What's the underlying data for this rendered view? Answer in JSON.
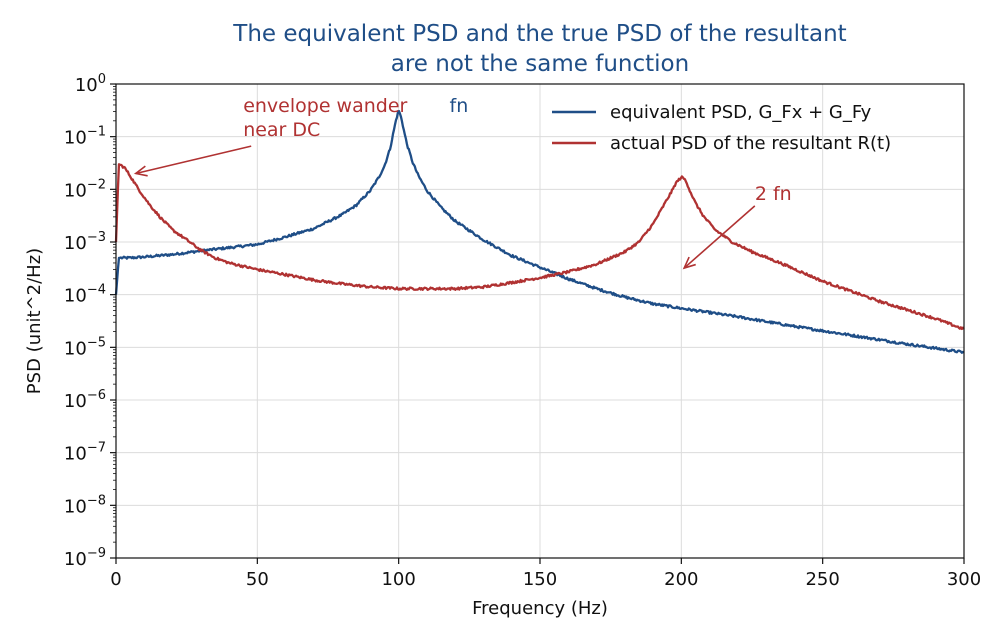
{
  "chart_data": {
    "type": "line",
    "title": [
      "The equivalent PSD and the true PSD of the resultant",
      "are not the same function"
    ],
    "xlabel": "Frequency (Hz)",
    "ylabel": "PSD  (unit^2/Hz)",
    "xlim": [
      0,
      300
    ],
    "ylim": [
      1e-09,
      1
    ],
    "yscale": "log",
    "grid": true,
    "legend_position": "top-right",
    "x_ticks": [
      0,
      50,
      100,
      150,
      200,
      250,
      300
    ],
    "y_tick_exponents": [
      0,
      -1,
      -2,
      -3,
      -4,
      -5,
      -6,
      -7,
      -8,
      -9
    ],
    "y_tick_base": "10",
    "series": [
      {
        "name": "equivalent PSD,  G_Fx + G_Fy",
        "color": "#1f4e87",
        "x": [
          0,
          1,
          5,
          10,
          20,
          30,
          40,
          50,
          60,
          70,
          80,
          85,
          90,
          93,
          95,
          97,
          98,
          99,
          100,
          101,
          102,
          103,
          105,
          107,
          110,
          115,
          120,
          130,
          140,
          150,
          160,
          170,
          180,
          190,
          200,
          220,
          240,
          260,
          280,
          300
        ],
        "y": [
          0.0001,
          0.0005,
          0.0005,
          0.00052,
          0.00058,
          0.00068,
          0.00078,
          0.0009,
          0.00125,
          0.0018,
          0.0033,
          0.005,
          0.0095,
          0.017,
          0.028,
          0.06,
          0.11,
          0.2,
          0.32,
          0.22,
          0.12,
          0.07,
          0.032,
          0.018,
          0.0095,
          0.0045,
          0.0025,
          0.0011,
          0.00055,
          0.00033,
          0.0002,
          0.00013,
          9e-05,
          6.7e-05,
          5.5e-05,
          3.8e-05,
          2.5e-05,
          1.7e-05,
          1.15e-05,
          8e-06
        ]
      },
      {
        "name": "actual PSD of the resultant R(t)",
        "color": "#b03232",
        "x": [
          0,
          1,
          3,
          5,
          8,
          12,
          16,
          20,
          25,
          30,
          35,
          40,
          50,
          60,
          70,
          80,
          90,
          100,
          110,
          120,
          130,
          140,
          150,
          160,
          170,
          180,
          185,
          190,
          193,
          195,
          197,
          198,
          199,
          200,
          201,
          202,
          203,
          205,
          208,
          212,
          218,
          225,
          235,
          250,
          270,
          290,
          300
        ],
        "y": [
          0.001,
          0.03,
          0.026,
          0.018,
          0.01,
          0.005,
          0.0028,
          0.0017,
          0.0011,
          0.0007,
          0.0005,
          0.0004,
          0.0003,
          0.00024,
          0.00019,
          0.00016,
          0.00014,
          0.00013,
          0.00013,
          0.00013,
          0.00014,
          0.00017,
          0.00021,
          0.00027,
          0.00038,
          0.00065,
          0.001,
          0.0022,
          0.0042,
          0.0065,
          0.01,
          0.013,
          0.015,
          0.017,
          0.016,
          0.013,
          0.0095,
          0.0055,
          0.003,
          0.0017,
          0.001,
          0.00065,
          0.0004,
          0.00018,
          7.5e-05,
          3.5e-05,
          2.2e-05
        ]
      }
    ],
    "annotations": [
      {
        "lines": [
          "envelope wander",
          "near DC"
        ],
        "color": "#b03232",
        "text_x": 45,
        "text_y": 0.38,
        "arrow_to": [
          7,
          0.02
        ]
      },
      {
        "lines": [
          "fn"
        ],
        "color": "#1f4e87",
        "text_x": 118,
        "text_y": 0.38,
        "arrow_to": null
      },
      {
        "lines": [
          "2 fn"
        ],
        "color": "#b03232",
        "text_x": 226,
        "text_y": 0.0082,
        "arrow_to": [
          201,
          0.00032
        ]
      }
    ]
  }
}
